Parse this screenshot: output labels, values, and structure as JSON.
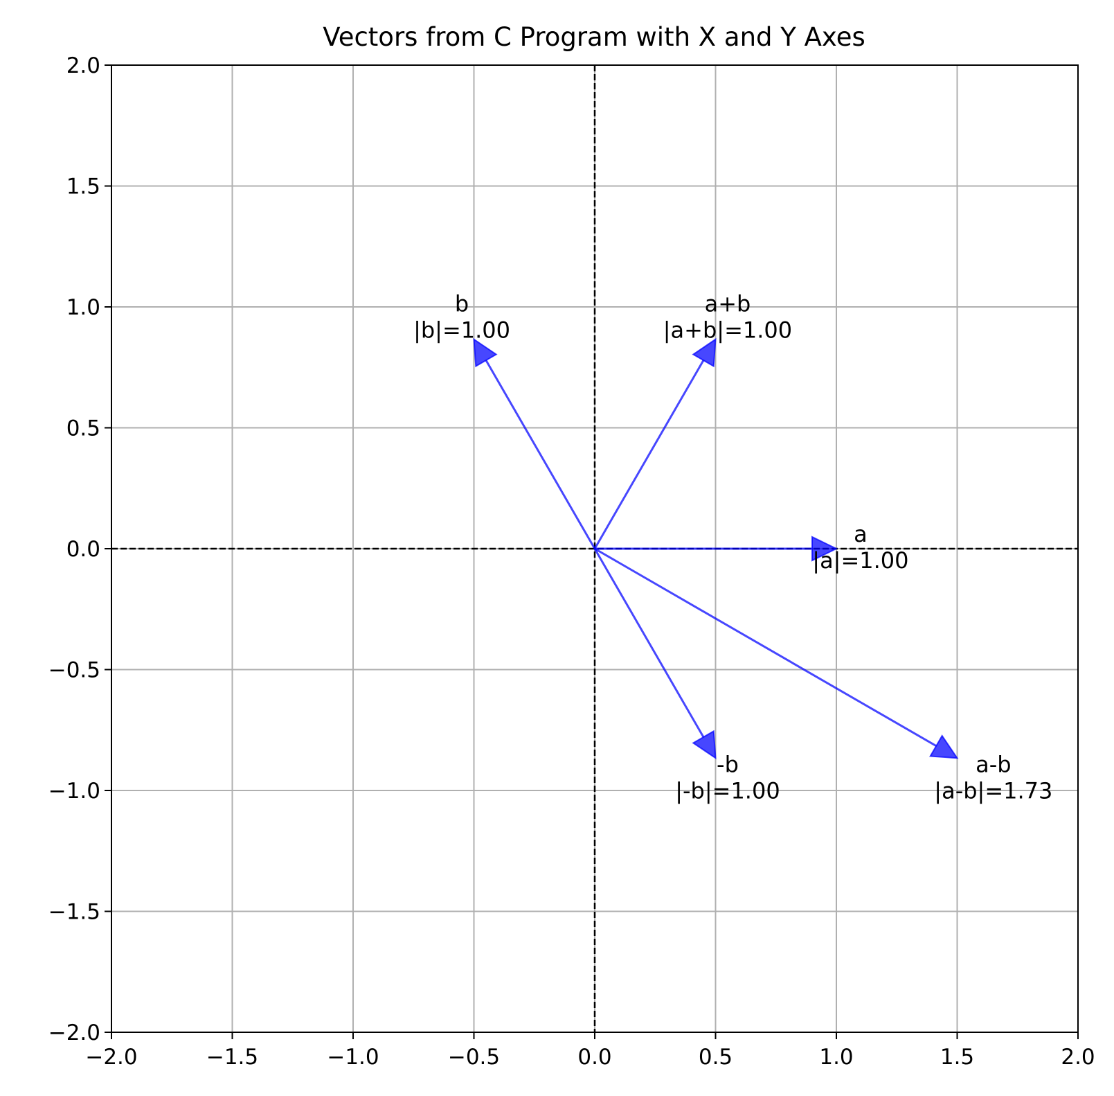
{
  "chart_data": {
    "type": "vector",
    "title": "Vectors from C Program with X and Y Axes",
    "xlabel": "",
    "ylabel": "",
    "xlim": [
      -2.0,
      2.0
    ],
    "ylim": [
      -2.0,
      2.0
    ],
    "grid": true,
    "x_ticks": [
      "−2.0",
      "−1.5",
      "−1.0",
      "−0.5",
      "0.0",
      "0.5",
      "1.0",
      "1.5",
      "2.0"
    ],
    "y_ticks": [
      "2.0",
      "1.5",
      "1.0",
      "0.5",
      "0.0",
      "−0.5",
      "−1.0",
      "−1.5",
      "−2.0"
    ],
    "x_tick_values": [
      -2.0,
      -1.5,
      -1.0,
      -0.5,
      0.0,
      0.5,
      1.0,
      1.5,
      2.0
    ],
    "y_tick_values": [
      2.0,
      1.5,
      1.0,
      0.5,
      0.0,
      -0.5,
      -1.0,
      -1.5,
      -2.0
    ],
    "axis_lines": {
      "x": 0,
      "y": 0,
      "style": "dashed",
      "color": "#000000"
    },
    "vector_color": "#0000ff",
    "vectors": [
      {
        "name": "a",
        "x": 1.0,
        "y": 0.0,
        "label": "a",
        "magnitude_label": "|a|=1.00"
      },
      {
        "name": "b",
        "x": -0.5,
        "y": 0.866,
        "label": "b",
        "magnitude_label": "|b|=1.00"
      },
      {
        "name": "a+b",
        "x": 0.5,
        "y": 0.866,
        "label": "a+b",
        "magnitude_label": "|a+b|=1.00"
      },
      {
        "name": "a-b",
        "x": 1.5,
        "y": -0.866,
        "label": "a-b",
        "magnitude_label": "|a-b|=1.73"
      },
      {
        "name": "-b",
        "x": 0.5,
        "y": -0.866,
        "label": "-b",
        "magnitude_label": "|-b|=1.00"
      }
    ]
  }
}
